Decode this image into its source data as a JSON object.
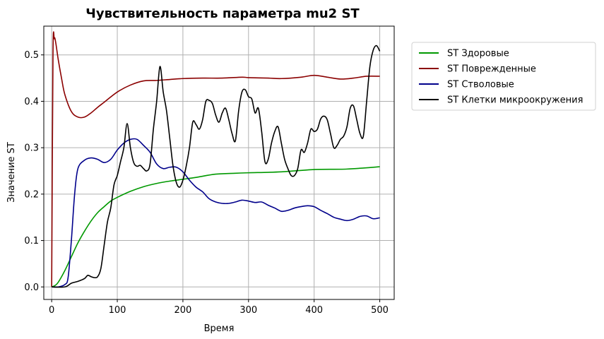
{
  "chart_data": {
    "type": "line",
    "title": "Чувствительность параметра mu2 ST",
    "xlabel": "Время",
    "ylabel": "Значение ST",
    "xlim": [
      -12,
      522
    ],
    "ylim": [
      -0.027,
      0.562
    ],
    "xticks": [
      0,
      100,
      200,
      300,
      400,
      500
    ],
    "yticks": [
      0.0,
      0.1,
      0.2,
      0.3,
      0.4,
      0.5
    ],
    "ytick_labels": [
      "0.0",
      "0.1",
      "0.2",
      "0.3",
      "0.4",
      "0.5"
    ],
    "grid": true,
    "legend_position": "outside-top-right",
    "series": [
      {
        "name": "ST Здоровые",
        "color": "#009900",
        "x": [
          0,
          5,
          10,
          20,
          30,
          40,
          50,
          60,
          70,
          80,
          90,
          100,
          120,
          140,
          160,
          180,
          200,
          220,
          250,
          280,
          300,
          350,
          400,
          450,
          500
        ],
        "y": [
          0.0,
          0.003,
          0.01,
          0.035,
          0.065,
          0.095,
          0.12,
          0.142,
          0.16,
          0.173,
          0.185,
          0.193,
          0.206,
          0.216,
          0.223,
          0.228,
          0.232,
          0.236,
          0.243,
          0.245,
          0.246,
          0.248,
          0.253,
          0.254,
          0.259
        ]
      },
      {
        "name": "ST Поврежденные",
        "color": "#8b0000",
        "x": [
          0,
          2,
          4,
          6,
          10,
          15,
          20,
          30,
          40,
          50,
          60,
          70,
          80,
          100,
          120,
          140,
          160,
          180,
          200,
          230,
          260,
          290,
          300,
          330,
          350,
          380,
          400,
          420,
          440,
          460,
          480,
          500
        ],
        "y": [
          0.0,
          0.5,
          0.535,
          0.528,
          0.49,
          0.45,
          0.415,
          0.378,
          0.366,
          0.366,
          0.375,
          0.387,
          0.398,
          0.42,
          0.435,
          0.444,
          0.445,
          0.447,
          0.449,
          0.45,
          0.45,
          0.452,
          0.451,
          0.45,
          0.449,
          0.452,
          0.456,
          0.452,
          0.448,
          0.45,
          0.454,
          0.454
        ]
      },
      {
        "name": "ST Стволовые",
        "color": "#00008b",
        "x": [
          0,
          10,
          20,
          25,
          30,
          35,
          40,
          50,
          60,
          70,
          80,
          90,
          100,
          110,
          120,
          130,
          140,
          150,
          160,
          170,
          180,
          190,
          200,
          210,
          220,
          230,
          240,
          250,
          260,
          270,
          280,
          290,
          300,
          310,
          320,
          330,
          340,
          350,
          360,
          370,
          380,
          390,
          400,
          410,
          420,
          430,
          440,
          450,
          460,
          470,
          480,
          490,
          500
        ],
        "y": [
          0.0,
          0.0,
          0.005,
          0.02,
          0.1,
          0.2,
          0.255,
          0.273,
          0.278,
          0.275,
          0.268,
          0.275,
          0.295,
          0.31,
          0.318,
          0.318,
          0.305,
          0.29,
          0.265,
          0.255,
          0.258,
          0.258,
          0.248,
          0.23,
          0.215,
          0.205,
          0.19,
          0.183,
          0.18,
          0.18,
          0.183,
          0.187,
          0.185,
          0.182,
          0.183,
          0.176,
          0.17,
          0.163,
          0.165,
          0.17,
          0.173,
          0.175,
          0.173,
          0.165,
          0.158,
          0.15,
          0.146,
          0.143,
          0.146,
          0.152,
          0.153,
          0.147,
          0.149
        ]
      },
      {
        "name": "ST Клетки микроокружения",
        "color": "#000000",
        "x": [
          0,
          20,
          30,
          40,
          50,
          55,
          60,
          65,
          70,
          75,
          80,
          85,
          90,
          95,
          100,
          105,
          110,
          115,
          120,
          125,
          130,
          135,
          140,
          145,
          150,
          155,
          160,
          165,
          170,
          175,
          180,
          185,
          190,
          195,
          200,
          205,
          210,
          215,
          220,
          225,
          230,
          235,
          240,
          245,
          250,
          255,
          260,
          265,
          270,
          275,
          280,
          285,
          290,
          295,
          300,
          305,
          310,
          315,
          320,
          325,
          330,
          335,
          340,
          345,
          350,
          355,
          360,
          365,
          370,
          375,
          380,
          385,
          390,
          395,
          400,
          405,
          410,
          415,
          420,
          425,
          430,
          435,
          440,
          445,
          450,
          455,
          460,
          465,
          470,
          475,
          480,
          485,
          490,
          495,
          500
        ],
        "y": [
          0.0,
          0.0,
          0.008,
          0.012,
          0.018,
          0.025,
          0.022,
          0.02,
          0.022,
          0.04,
          0.09,
          0.14,
          0.17,
          0.22,
          0.24,
          0.27,
          0.3,
          0.352,
          0.3,
          0.268,
          0.26,
          0.262,
          0.255,
          0.25,
          0.265,
          0.34,
          0.4,
          0.475,
          0.42,
          0.38,
          0.32,
          0.26,
          0.225,
          0.215,
          0.23,
          0.26,
          0.3,
          0.355,
          0.35,
          0.34,
          0.36,
          0.4,
          0.402,
          0.395,
          0.37,
          0.355,
          0.375,
          0.385,
          0.36,
          0.33,
          0.315,
          0.38,
          0.42,
          0.425,
          0.41,
          0.405,
          0.375,
          0.385,
          0.335,
          0.27,
          0.275,
          0.31,
          0.335,
          0.345,
          0.31,
          0.275,
          0.255,
          0.24,
          0.24,
          0.255,
          0.295,
          0.29,
          0.31,
          0.34,
          0.335,
          0.34,
          0.362,
          0.368,
          0.36,
          0.33,
          0.3,
          0.305,
          0.318,
          0.325,
          0.345,
          0.385,
          0.39,
          0.36,
          0.33,
          0.325,
          0.4,
          0.475,
          0.51,
          0.52,
          0.508
        ]
      }
    ]
  }
}
